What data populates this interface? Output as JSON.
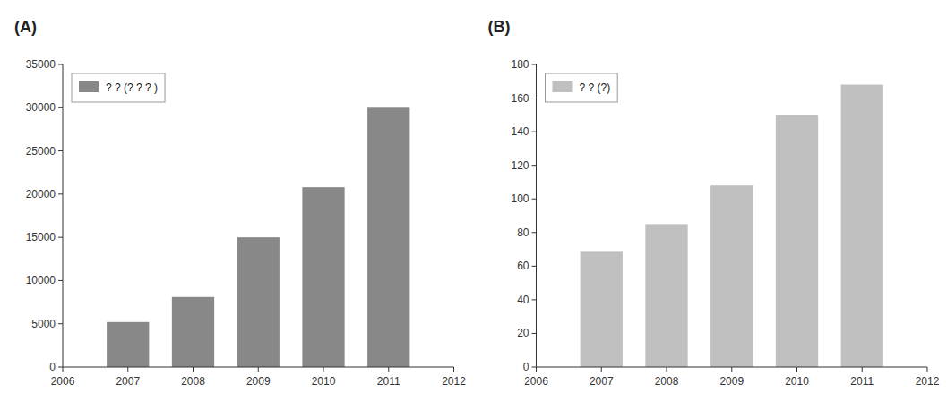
{
  "chart_data": [
    {
      "type": "bar",
      "title": "(A)",
      "x": [
        2007,
        2008,
        2009,
        2010,
        2011
      ],
      "series": [
        {
          "name": "? ? (? ? ? )",
          "color": "#888888",
          "values": [
            5200,
            8100,
            15000,
            20800,
            30000
          ]
        }
      ],
      "xlim": [
        2006,
        2012
      ],
      "xticks": [
        2006,
        2007,
        2008,
        2009,
        2010,
        2011,
        2012
      ],
      "ylim": [
        0,
        35000
      ],
      "yticks": [
        0,
        5000,
        10000,
        15000,
        20000,
        25000,
        30000,
        35000
      ],
      "grid": false,
      "legend": "top-left"
    },
    {
      "type": "bar",
      "title": "(B)",
      "x": [
        2007,
        2008,
        2009,
        2010,
        2011
      ],
      "series": [
        {
          "name": "? ? (?)",
          "color": "#c0c0c0",
          "values": [
            69,
            85,
            108,
            150,
            168
          ]
        }
      ],
      "xlim": [
        2006,
        2012
      ],
      "xticks": [
        2006,
        2007,
        2008,
        2009,
        2010,
        2011,
        2012
      ],
      "ylim": [
        0,
        180
      ],
      "yticks": [
        0,
        20,
        40,
        60,
        80,
        100,
        120,
        140,
        160,
        180
      ],
      "grid": false,
      "legend": "top-left"
    }
  ]
}
